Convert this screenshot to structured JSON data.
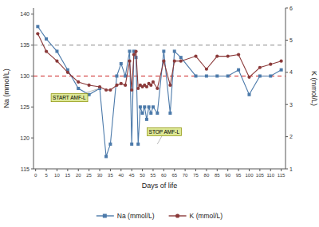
{
  "chart_data": {
    "type": "line",
    "x": [
      1,
      5,
      10,
      15,
      20,
      25,
      30,
      33,
      35,
      38,
      40,
      42,
      44,
      45,
      46,
      47,
      48,
      49,
      50,
      51,
      52,
      53,
      54,
      55,
      57,
      60,
      63,
      65,
      68,
      75,
      80,
      85,
      90,
      95,
      100,
      105,
      110,
      115
    ],
    "series": [
      {
        "name": "Na (mmol/L)",
        "color": "#4c7aaa",
        "marker": "square",
        "line_style": "solid",
        "values": [
          138,
          136,
          134,
          131,
          128,
          127,
          128,
          117,
          119,
          130,
          132,
          130,
          134,
          119,
          134,
          133,
          119,
          125,
          124,
          125,
          123,
          125,
          124,
          125,
          124,
          134,
          124,
          134,
          133,
          130,
          130,
          130,
          130,
          131,
          127,
          130,
          130,
          131
        ]
      },
      {
        "name": "K (mmol/L)",
        "color": "#8b3a3a",
        "marker": "circle",
        "line_style": "solid",
        "axis": "y2",
        "values": [
          5.2,
          4.65,
          4.35,
          4.0,
          3.7,
          3.6,
          3.55,
          3.45,
          3.45,
          3.6,
          3.65,
          3.6,
          4.35,
          3.45,
          4.55,
          4.65,
          3.5,
          3.6,
          3.55,
          3.6,
          3.55,
          3.65,
          3.6,
          3.7,
          3.5,
          4.35,
          3.6,
          4.35,
          4.35,
          4.5,
          4.1,
          4.5,
          4.5,
          4.55,
          3.85,
          4.15,
          4.25,
          4.35
        ]
      }
    ],
    "xlabel": "Days of life",
    "ylabel": "Na (mmol/L)",
    "y2label": "K (mmol/L)",
    "xlim": [
      -1,
      117
    ],
    "xticks": [
      0,
      5,
      10,
      15,
      20,
      25,
      30,
      35,
      40,
      45,
      50,
      55,
      60,
      65,
      70,
      75,
      80,
      85,
      90,
      95,
      100,
      105,
      110,
      115
    ],
    "ylim": [
      115,
      141
    ],
    "yticks": [
      115,
      120,
      125,
      130,
      135,
      140
    ],
    "y2lim": [
      1,
      6
    ],
    "y2ticks": [
      1,
      2,
      3,
      4,
      5,
      6
    ],
    "reference_lines": [
      {
        "value": 135,
        "color": "#888888",
        "line_style": "dashed"
      },
      {
        "value": 130,
        "color": "#cc2222",
        "line_style": "dashed"
      }
    ],
    "annotations": [
      {
        "text": "START AMF-L",
        "x": 30,
        "y": 128,
        "text_x": 8,
        "text_y": 126.5
      },
      {
        "text": "STOP AMF-L",
        "x": 57,
        "y": 119,
        "text_x": 53,
        "text_y": 121
      }
    ],
    "legend": "bottom",
    "grid": false
  }
}
